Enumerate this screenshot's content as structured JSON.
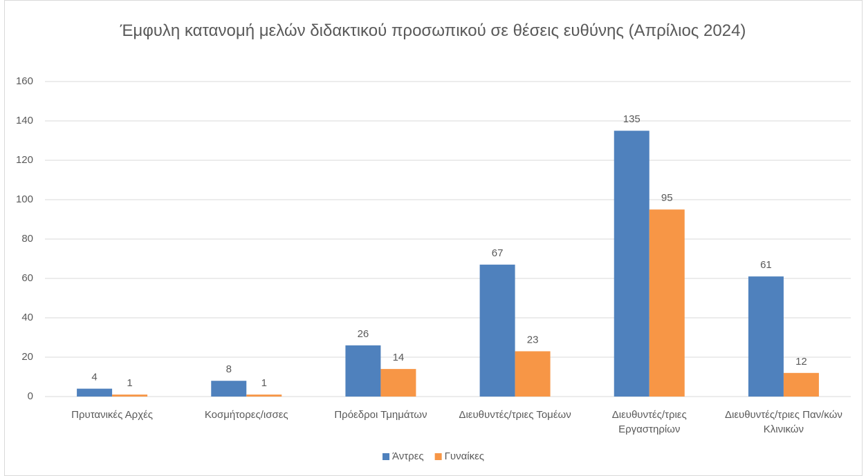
{
  "chart_data": {
    "type": "bar",
    "title": "Έμφυλη κατανομή μελών διδακτικού προσωπικού σε θέσεις ευθύνης (Απρίλιος 2024)",
    "categories": [
      "Πρυτανικές Αρχές",
      "Κοσμήτορες/ισσες",
      "Πρόεδροι Τμημάτων",
      "Διευθυντές/τριες Τομέων",
      "Διευθυντές/τριες Εργαστηρίων",
      "Διευθυντές/τριες Παν/κών Κλινικών"
    ],
    "series": [
      {
        "name": "Άντρες",
        "color": "#4f81bd",
        "values": [
          4,
          8,
          26,
          67,
          135,
          61
        ]
      },
      {
        "name": "Γυναίκες",
        "color": "#f79646",
        "values": [
          1,
          1,
          14,
          23,
          95,
          12
        ]
      }
    ],
    "ylim": [
      0,
      160
    ],
    "yticks": [
      0,
      20,
      40,
      60,
      80,
      100,
      120,
      140,
      160
    ],
    "grid": true,
    "legend": "bottom"
  }
}
